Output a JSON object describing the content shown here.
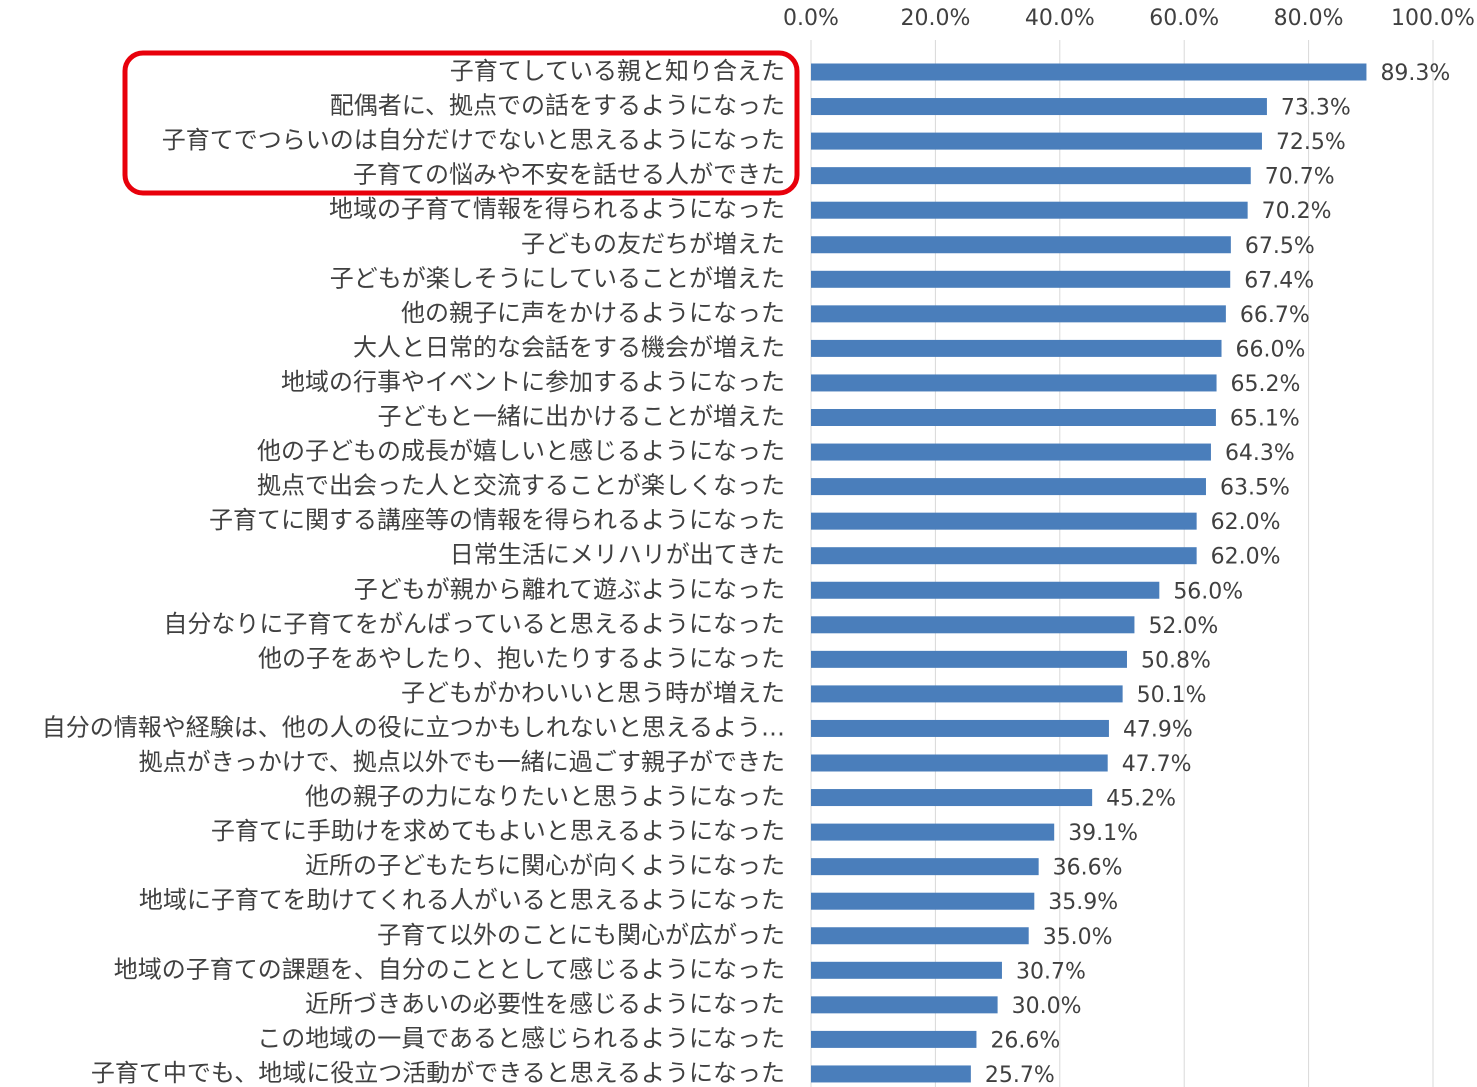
{
  "chart_data": {
    "type": "barh",
    "categories": [
      "子育てしている親と知り合えた",
      "配偶者に、拠点での話をするようになった",
      "子育てでつらいのは自分だけでないと思えるようになった",
      "子育ての悩みや不安を話せる人ができた",
      "地域の子育て情報を得られるようになった",
      "子どもの友だちが増えた",
      "子どもが楽しそうにしていることが増えた",
      "他の親子に声をかけるようになった",
      "大人と日常的な会話をする機会が増えた",
      "地域の行事やイベントに参加するようになった",
      "子どもと一緒に出かけることが増えた",
      "他の子どもの成長が嬉しいと感じるようになった",
      "拠点で出会った人と交流することが楽しくなった",
      "子育てに関する講座等の情報を得られるようになった",
      "日常生活にメリハリが出てきた",
      "子どもが親から離れて遊ぶようになった",
      "自分なりに子育てをがんばっていると思えるようになった",
      "他の子をあやしたり、抱いたりするようになった",
      "子どもがかわいいと思う時が増えた",
      "自分の情報や経験は、他の人の役に立つかもしれないと思えるよう…",
      "拠点がきっかけで、拠点以外でも一緒に過ごす親子ができた",
      "他の親子の力になりたいと思うようになった",
      "子育てに手助けを求めてもよいと思えるようになった",
      "近所の子どもたちに関心が向くようになった",
      "地域に子育てを助けてくれる人がいると思えるようになった",
      "子育て以外のことにも関心が広がった",
      "地域の子育ての課題を、自分のこととして感じるようになった",
      "近所づきあいの必要性を感じるようになった",
      "この地域の一員であると感じられるようになった",
      "子育て中でも、地域に役立つ活動ができると思えるようになった"
    ],
    "values": [
      89.3,
      73.3,
      72.5,
      70.7,
      70.2,
      67.5,
      67.4,
      66.7,
      66.0,
      65.2,
      65.1,
      64.3,
      63.5,
      62.0,
      62.0,
      56.0,
      52.0,
      50.8,
      50.1,
      47.9,
      47.7,
      45.2,
      39.1,
      36.6,
      35.9,
      35.0,
      30.7,
      30.0,
      26.6,
      25.7
    ],
    "value_labels": [
      "89.3%",
      "73.3%",
      "72.5%",
      "70.7%",
      "70.2%",
      "67.5%",
      "67.4%",
      "66.7%",
      "66.0%",
      "65.2%",
      "65.1%",
      "64.3%",
      "63.5%",
      "62.0%",
      "62.0%",
      "56.0%",
      "52.0%",
      "50.8%",
      "50.1%",
      "47.9%",
      "47.7%",
      "45.2%",
      "39.1%",
      "36.6%",
      "35.9%",
      "35.0%",
      "30.7%",
      "30.0%",
      "26.6%",
      "25.7%"
    ],
    "color": "#4a7ebb",
    "xlim": [
      0,
      100
    ],
    "xticks": [
      {
        "value": 0,
        "label": "0.0%"
      },
      {
        "value": 20,
        "label": "20.0%"
      },
      {
        "value": 40,
        "label": "40.0%"
      },
      {
        "value": 60,
        "label": "60.0%"
      },
      {
        "value": 80,
        "label": "80.0%"
      },
      {
        "value": 100,
        "label": "100.0%"
      }
    ],
    "grid": true
  }
}
